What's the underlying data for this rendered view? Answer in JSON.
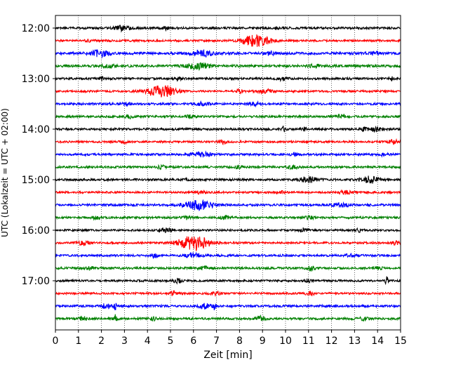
{
  "chart_data": {
    "type": "line",
    "title": "",
    "xlabel": "Zeit  [min]",
    "ylabel": "UTC (Lokalzeit = UTC + 02:00)",
    "xlim": [
      0,
      15
    ],
    "x_ticks": [
      0,
      1,
      2,
      3,
      4,
      5,
      6,
      7,
      8,
      9,
      10,
      11,
      12,
      13,
      14,
      15
    ],
    "x_tick_labels": [
      "0",
      "1",
      "2",
      "3",
      "4",
      "5",
      "6",
      "7",
      "8",
      "9",
      "10",
      "11",
      "12",
      "13",
      "14",
      "15"
    ],
    "y_tick_labels": [
      "12:00",
      "13:00",
      "14:00",
      "15:00",
      "16:00",
      "17:00"
    ],
    "trace_interval_min": 15,
    "grid": "vertical-dotted",
    "colors": [
      "#000000",
      "#ff0000",
      "#0000ff",
      "#008000"
    ],
    "traces": [
      {
        "start": "11:45",
        "color": "#000000",
        "noise": 0.22,
        "events": [
          [
            2.9,
            0.45,
            0.6
          ],
          [
            4.8,
            0.25,
            0.4
          ],
          [
            9.7,
            0.3,
            0.3
          ]
        ]
      },
      {
        "start": "12:00",
        "color": "#ff0000",
        "noise": 0.2,
        "events": [
          [
            8.7,
            1.1,
            1.2
          ],
          [
            1.4,
            0.2,
            0.4
          ]
        ]
      },
      {
        "start": "12:15",
        "color": "#0000ff",
        "noise": 0.25,
        "events": [
          [
            1.9,
            0.6,
            0.8
          ],
          [
            6.4,
            0.55,
            0.9
          ],
          [
            9.3,
            0.3,
            0.5
          ],
          [
            13.8,
            0.25,
            0.5
          ]
        ]
      },
      {
        "start": "12:30",
        "color": "#008000",
        "noise": 0.25,
        "events": [
          [
            6.2,
            0.65,
            0.9
          ],
          [
            2.3,
            0.25,
            0.5
          ],
          [
            11.2,
            0.25,
            0.5
          ]
        ]
      },
      {
        "start": "12:45",
        "color": "#000000",
        "noise": 0.22,
        "events": [
          [
            2.0,
            0.45,
            0.1
          ],
          [
            5.3,
            0.3,
            0.3
          ],
          [
            9.9,
            0.3,
            0.4
          ],
          [
            14.6,
            0.5,
            0.1
          ]
        ]
      },
      {
        "start": "13:00",
        "color": "#ff0000",
        "noise": 0.2,
        "events": [
          [
            4.6,
            1.3,
            1.2
          ],
          [
            8.0,
            0.5,
            0.15
          ],
          [
            9.1,
            0.35,
            0.6
          ]
        ]
      },
      {
        "start": "13:15",
        "color": "#0000ff",
        "noise": 0.22,
        "events": [
          [
            3.1,
            0.35,
            0.3
          ],
          [
            6.4,
            0.3,
            0.5
          ],
          [
            8.7,
            0.3,
            0.4
          ]
        ]
      },
      {
        "start": "13:30",
        "color": "#008000",
        "noise": 0.22,
        "events": [
          [
            3.2,
            0.3,
            0.3
          ],
          [
            5.8,
            0.35,
            0.3
          ],
          [
            12.4,
            0.35,
            0.4
          ]
        ]
      },
      {
        "start": "13:45",
        "color": "#000000",
        "noise": 0.22,
        "events": [
          [
            9.9,
            0.5,
            0.15
          ],
          [
            10.8,
            0.3,
            0.2
          ],
          [
            13.4,
            0.4,
            0.3
          ],
          [
            14.0,
            0.45,
            0.5
          ]
        ]
      },
      {
        "start": "14:00",
        "color": "#ff0000",
        "noise": 0.2,
        "events": [
          [
            3.0,
            0.3,
            0.3
          ],
          [
            7.3,
            0.35,
            0.3
          ],
          [
            14.7,
            0.45,
            0.4
          ]
        ]
      },
      {
        "start": "14:15",
        "color": "#0000ff",
        "noise": 0.22,
        "events": [
          [
            6.3,
            0.45,
            0.8
          ],
          [
            10.4,
            0.25,
            0.3
          ],
          [
            14.2,
            0.25,
            0.3
          ]
        ]
      },
      {
        "start": "14:30",
        "color": "#008000",
        "noise": 0.22,
        "events": [
          [
            4.6,
            0.3,
            0.3
          ],
          [
            8.0,
            0.3,
            0.3
          ],
          [
            10.3,
            0.3,
            0.4
          ]
        ]
      },
      {
        "start": "14:45",
        "color": "#000000",
        "noise": 0.22,
        "events": [
          [
            11.0,
            0.55,
            0.7
          ],
          [
            13.7,
            0.65,
            0.7
          ],
          [
            5.7,
            0.25,
            0.1
          ]
        ]
      },
      {
        "start": "15:00",
        "color": "#ff0000",
        "noise": 0.2,
        "events": [
          [
            6.3,
            0.25,
            0.5
          ],
          [
            9.8,
            0.3,
            0.3
          ],
          [
            12.6,
            0.3,
            0.5
          ]
        ]
      },
      {
        "start": "15:15",
        "color": "#0000ff",
        "noise": 0.22,
        "events": [
          [
            6.2,
            0.9,
            1.2
          ],
          [
            12.4,
            0.35,
            0.7
          ]
        ]
      },
      {
        "start": "15:30",
        "color": "#008000",
        "noise": 0.22,
        "events": [
          [
            1.8,
            0.35,
            0.3
          ],
          [
            5.7,
            0.3,
            0.3
          ],
          [
            7.4,
            0.35,
            0.4
          ],
          [
            11.0,
            0.3,
            0.4
          ]
        ]
      },
      {
        "start": "15:45",
        "color": "#000000",
        "noise": 0.2,
        "events": [
          [
            4.8,
            0.45,
            0.6
          ],
          [
            10.8,
            0.3,
            0.3
          ],
          [
            13.2,
            0.3,
            0.3
          ]
        ]
      },
      {
        "start": "16:00",
        "color": "#ff0000",
        "noise": 0.2,
        "events": [
          [
            6.0,
            1.5,
            1.3
          ],
          [
            1.2,
            0.45,
            0.5
          ],
          [
            14.8,
            0.4,
            0.3
          ]
        ]
      },
      {
        "start": "16:15",
        "color": "#0000ff",
        "noise": 0.22,
        "events": [
          [
            4.3,
            0.45,
            0.2
          ],
          [
            6.0,
            0.5,
            0.6
          ],
          [
            12.8,
            0.35,
            0.3
          ]
        ]
      },
      {
        "start": "16:30",
        "color": "#008000",
        "noise": 0.22,
        "events": [
          [
            1.5,
            0.35,
            0.3
          ],
          [
            6.5,
            0.35,
            0.5
          ],
          [
            11.1,
            0.45,
            0.3
          ],
          [
            14.0,
            0.3,
            0.3
          ]
        ]
      },
      {
        "start": "16:45",
        "color": "#000000",
        "noise": 0.2,
        "events": [
          [
            5.3,
            0.45,
            0.3
          ],
          [
            14.4,
            0.9,
            0.1
          ],
          [
            11.0,
            0.3,
            0.3
          ]
        ]
      },
      {
        "start": "17:00",
        "color": "#ff0000",
        "noise": 0.2,
        "events": [
          [
            5.1,
            0.45,
            0.3
          ],
          [
            7.0,
            0.4,
            0.4
          ],
          [
            11.1,
            0.4,
            0.4
          ]
        ]
      },
      {
        "start": "17:15",
        "color": "#0000ff",
        "noise": 0.22,
        "events": [
          [
            2.2,
            0.55,
            0.3
          ],
          [
            2.6,
            0.8,
            0.1
          ],
          [
            6.5,
            0.45,
            0.5
          ],
          [
            6.9,
            0.6,
            0.1
          ]
        ]
      },
      {
        "start": "17:30",
        "color": "#008000",
        "noise": 0.22,
        "events": [
          [
            1.2,
            0.4,
            0.3
          ],
          [
            2.6,
            0.8,
            0.1
          ],
          [
            4.2,
            0.35,
            0.3
          ],
          [
            8.9,
            0.4,
            0.4
          ],
          [
            13.4,
            0.35,
            0.4
          ]
        ]
      }
    ]
  }
}
